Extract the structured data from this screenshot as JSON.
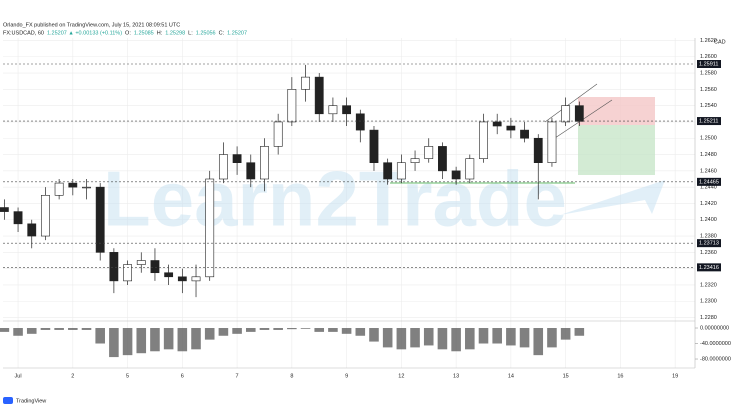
{
  "header": {
    "published": "Orlando_FX published on TradingView.com, July 15, 2021 08:09:51 UTC",
    "parts": [
      {
        "text": "FX:USDCAD, 60",
        "color": "#222"
      },
      {
        "text": "1.25207 ▲ +0.00133 (+0.11%)",
        "color": "#26a69a"
      },
      {
        "text": "O:",
        "color": "#222"
      },
      {
        "text": "1.25085",
        "color": "#26a69a"
      },
      {
        "text": "H:",
        "color": "#222"
      },
      {
        "text": "1.25298",
        "color": "#26a69a"
      },
      {
        "text": "L:",
        "color": "#222"
      },
      {
        "text": "1.25056",
        "color": "#26a69a"
      },
      {
        "text": "C:",
        "color": "#222"
      },
      {
        "text": "1.25207",
        "color": "#26a69a"
      }
    ]
  },
  "watermark": "Learn2Trade",
  "footer": "TradingView",
  "chart_data": [
    {
      "type": "candlestick",
      "currency": "CAD",
      "up_color": "#ffffff",
      "down_color": "#222222",
      "open": [
        1.2415,
        1.241,
        1.2395,
        1.238,
        1.243,
        1.2445,
        1.244,
        1.244,
        1.236,
        1.2325,
        1.2345,
        1.235,
        1.2335,
        1.233,
        1.2325,
        1.233,
        1.245,
        1.248,
        1.247,
        1.245,
        1.249,
        1.252,
        1.256,
        1.2575,
        1.253,
        1.254,
        1.253,
        1.251,
        1.247,
        1.245,
        1.247,
        1.2475,
        1.249,
        1.246,
        1.245,
        1.2475,
        1.252,
        1.2515,
        1.251,
        1.25,
        1.247,
        1.252,
        1.254
      ],
      "high": [
        1.2425,
        1.2415,
        1.24,
        1.244,
        1.245,
        1.245,
        1.245,
        1.2445,
        1.2365,
        1.235,
        1.236,
        1.2365,
        1.2345,
        1.234,
        1.2345,
        1.246,
        1.2495,
        1.249,
        1.248,
        1.25,
        1.253,
        1.2575,
        1.259,
        1.258,
        1.255,
        1.255,
        1.2535,
        1.2515,
        1.2475,
        1.248,
        1.2485,
        1.25,
        1.2495,
        1.2465,
        1.248,
        1.253,
        1.253,
        1.2525,
        1.252,
        1.2505,
        1.2525,
        1.255,
        1.2545
      ],
      "low": [
        1.24,
        1.2385,
        1.2365,
        1.2375,
        1.2425,
        1.243,
        1.2425,
        1.235,
        1.231,
        1.232,
        1.2335,
        1.2325,
        1.232,
        1.231,
        1.2305,
        1.2325,
        1.2445,
        1.2455,
        1.244,
        1.2435,
        1.248,
        1.2515,
        1.2545,
        1.252,
        1.252,
        1.2515,
        1.2495,
        1.246,
        1.2443,
        1.2445,
        1.246,
        1.247,
        1.245,
        1.2443,
        1.2445,
        1.247,
        1.2505,
        1.25,
        1.2495,
        1.2425,
        1.2465,
        1.2515,
        1.2515
      ],
      "close": [
        1.241,
        1.2395,
        1.238,
        1.243,
        1.2445,
        1.244,
        1.244,
        1.236,
        1.2325,
        1.2345,
        1.235,
        1.2335,
        1.233,
        1.2325,
        1.233,
        1.245,
        1.248,
        1.247,
        1.245,
        1.249,
        1.252,
        1.256,
        1.2575,
        1.253,
        1.254,
        1.253,
        1.251,
        1.247,
        1.245,
        1.247,
        1.2475,
        1.249,
        1.246,
        1.245,
        1.2475,
        1.252,
        1.2515,
        1.251,
        1.25,
        1.247,
        1.252,
        1.254,
        1.25207
      ],
      "levels": [
        1.25911,
        1.25211,
        1.24465,
        1.23713,
        1.23416
      ],
      "ylim": [
        1.2277,
        1.2623
      ],
      "yticks": [
        {
          "value": 1.262,
          "label": "1.2620"
        },
        {
          "value": 1.26,
          "label": "1.2600"
        },
        {
          "value": 1.258,
          "label": "1.2580"
        },
        {
          "value": 1.256,
          "label": "1.2560"
        },
        {
          "value": 1.254,
          "label": "1.2540"
        },
        {
          "value": 1.252,
          "label": "1.2520"
        },
        {
          "value": 1.25,
          "label": "1.2500"
        },
        {
          "value": 1.248,
          "label": "1.2480"
        },
        {
          "value": 1.246,
          "label": "1.2460"
        },
        {
          "value": 1.244,
          "label": "1.2440"
        },
        {
          "value": 1.242,
          "label": "1.2420"
        },
        {
          "value": 1.24,
          "label": "1.2400"
        },
        {
          "value": 1.238,
          "label": "1.2380"
        },
        {
          "value": 1.236,
          "label": "1.2360"
        },
        {
          "value": 1.234,
          "label": "1.2340"
        },
        {
          "value": 1.232,
          "label": "1.2320"
        },
        {
          "value": 1.23,
          "label": "1.2300"
        },
        {
          "value": 1.228,
          "label": "1.2280"
        }
      ],
      "xlim": [
        -0.1,
        50.45
      ],
      "xticks": [
        {
          "value": 1,
          "label": "Jul"
        },
        {
          "value": 5,
          "label": "2"
        },
        {
          "value": 9,
          "label": "5"
        },
        {
          "value": 13,
          "label": "6"
        },
        {
          "value": 17,
          "label": "7"
        },
        {
          "value": 21,
          "label": "8"
        },
        {
          "value": 25,
          "label": "9"
        },
        {
          "value": 29,
          "label": "12"
        },
        {
          "value": 33,
          "label": "13"
        },
        {
          "value": 37,
          "label": "14"
        },
        {
          "value": 41,
          "label": "15"
        },
        {
          "value": 45,
          "label": "16"
        },
        {
          "value": 49,
          "label": "19"
        }
      ],
      "grid": true
    },
    {
      "type": "histogram",
      "color": "#555555",
      "values": [
        -10,
        -20,
        -15,
        -5,
        -5,
        -5,
        -5,
        -40,
        -75,
        -70,
        -65,
        -60,
        -55,
        -60,
        -55,
        -30,
        -20,
        -15,
        -10,
        -5,
        -5,
        -3,
        -2,
        -10,
        -10,
        -15,
        -20,
        -35,
        -50,
        -55,
        -50,
        -45,
        -55,
        -60,
        -55,
        -40,
        -40,
        -45,
        -50,
        -70,
        -50,
        -30,
        -20
      ],
      "ylim": [
        -98,
        15.5
      ],
      "yticks": [
        {
          "value": 0,
          "label": "0.00000000"
        },
        {
          "value": -40,
          "label": "-40.0000000"
        },
        {
          "value": -80,
          "label": "-80.0000000"
        }
      ]
    }
  ]
}
